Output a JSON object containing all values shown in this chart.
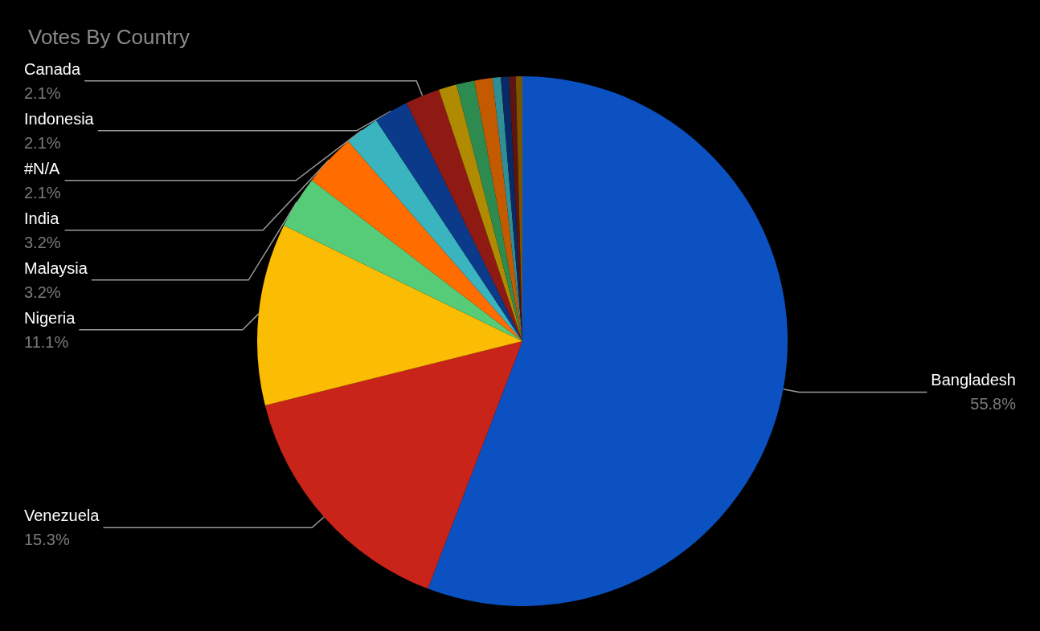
{
  "chart_data": {
    "type": "pie",
    "title": "Votes By Country",
    "categories": [
      "Bangladesh",
      "Venezuela",
      "Nigeria",
      "Malaysia",
      "India",
      "#N/A",
      "Indonesia",
      "Canada",
      null,
      null,
      null,
      null,
      null,
      null,
      null
    ],
    "values": [
      55.8,
      15.3,
      11.1,
      3.2,
      3.2,
      2.1,
      2.1,
      2.1,
      1.1,
      1.1,
      1.1,
      0.5,
      0.5,
      0.4,
      0.4
    ],
    "value_labels": [
      "55.8%",
      "15.3%",
      "11.1%",
      "3.2%",
      "3.2%",
      "2.1%",
      "2.1%",
      "2.1%",
      null,
      null,
      null,
      null,
      null,
      null,
      null
    ],
    "colors": [
      "#0b51c1",
      "#c8241a",
      "#fbbc04",
      "#57cc78",
      "#ff6d01",
      "#3ab4be",
      "#0b3a8a",
      "#8f1a14",
      "#b08a00",
      "#2e8b50",
      "#c45a00",
      "#2f8f96",
      "#0a2a66",
      "#5e1410",
      "#7a5500"
    ],
    "legend": false
  }
}
